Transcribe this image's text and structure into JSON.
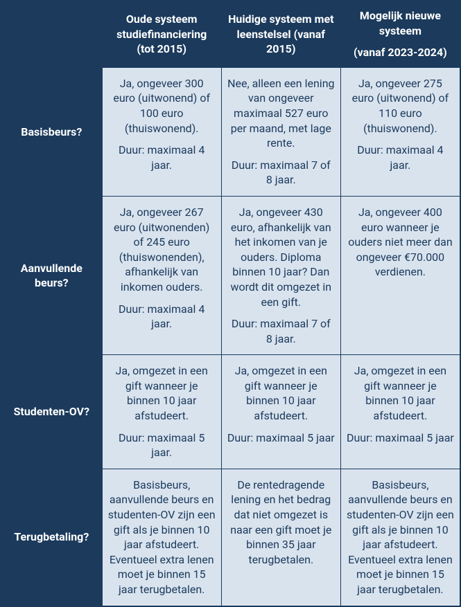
{
  "table": {
    "columns": [
      {
        "label": ""
      },
      {
        "label": "Oude systeem studiefinanciering (tot 2015)"
      },
      {
        "label": "Huidige systeem met leenstelsel (vanaf 2015)"
      },
      {
        "label_line1": "Mogelijk nieuwe systeem",
        "label_line2": "(vanaf 2023-2024)"
      }
    ],
    "rows": [
      {
        "label": "Basisbeurs?",
        "cells": [
          {
            "p1": "Ja, ongeveer 300 euro (uitwonend) of 100 euro (thuiswonend).",
            "p2": "Duur: maximaal 4 jaar."
          },
          {
            "p1": "Nee, alleen een lening van ongeveer maximaal 527 euro per maand, met lage rente.",
            "p2": "Duur: maximaal 7 of 8 jaar."
          },
          {
            "p1": "Ja, ongeveer 275 euro (uitwonend) of 110 euro (thuiswonend).",
            "p2": "Duur: maximaal 4 jaar."
          }
        ]
      },
      {
        "label": "Aanvullende beurs?",
        "cells": [
          {
            "p1": "Ja, ongeveer 267 euro (uitwonenden) of 245 euro (thuiswonenden), afhankelijk van inkomen ouders.",
            "p2": "Duur: maximaal 4 jaar."
          },
          {
            "p1": "Ja, ongeveer 430 euro, afhankelijk van het inkomen van je ouders. Diploma binnen 10 jaar? Dan wordt dit omgezet in een gift.",
            "p2": "Duur: maximaal 7 of 8 jaar."
          },
          {
            "p1": "Ja, ongeveer 400 euro wanneer je ouders niet meer dan ongeveer €70.000 verdienen."
          }
        ]
      },
      {
        "label": "Studenten-OV?",
        "cells": [
          {
            "p1": "Ja, omgezet in een gift wanneer je binnen 10 jaar afstudeert.",
            "p2": "Duur: maximaal 5 jaar."
          },
          {
            "p1": "Ja, omgezet in een gift wanneer je binnen 10 jaar afstudeert.",
            "p2": "Duur: maximaal 5 jaar"
          },
          {
            "p1": "Ja, omgezet in een gift wanneer je binnen 10 jaar afstudeert.",
            "p2": "Duur: maximaal 5 jaar"
          }
        ]
      },
      {
        "label": "Terugbetaling?",
        "cells": [
          {
            "p1": "Basisbeurs, aanvullende beurs en studenten-OV zijn een gift als je binnen 10 jaar afstudeert. Eventueel extra lenen moet je binnen 15 jaar terugbetalen."
          },
          {
            "p1": "De rentedragende lening en het bedrag dat niet omgezet is naar een gift moet je binnen 35 jaar terugbetalen."
          },
          {
            "p1": "Basisbeurs, aanvullende beurs en studenten-OV zijn een gift als je binnen 10 jaar afstudeert. Eventueel extra lenen moet je binnen 15 jaar terugbetalen."
          }
        ]
      }
    ],
    "style": {
      "header_bg": "#1b3a5c",
      "header_text": "#ffffff",
      "rowhead_bg": "#1b3a5c",
      "rowhead_text": "#ffffff",
      "cell_bg": "#d9e3ee",
      "cell_text": "#1b3a5c",
      "border_color": "#1b3a5c",
      "header_fontsize_pt": 13,
      "cell_fontsize_pt": 12,
      "font_family": "sans-serif",
      "col_widths_pct": [
        22,
        26,
        26,
        26
      ]
    }
  }
}
